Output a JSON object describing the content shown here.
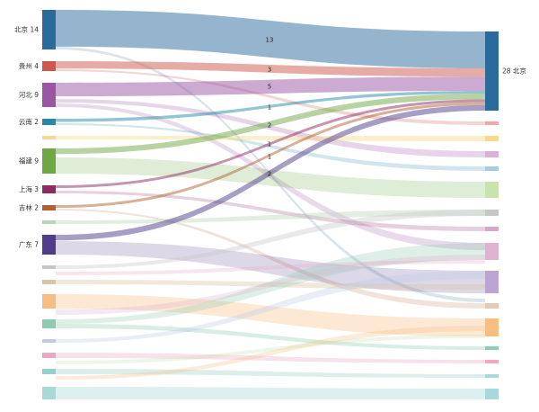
{
  "chart_data": {
    "type": "sankey",
    "target": {
      "name": "北京",
      "value": 28,
      "label": "28 北京",
      "color": "#2a6b9c"
    },
    "sources": [
      {
        "name": "北京",
        "value": 14,
        "label": "北京 14",
        "color": "#2a6b9c"
      },
      {
        "name": "贵州",
        "value": 4,
        "label": "贵州 4",
        "color": "#d0574c"
      },
      {
        "name": "河北",
        "value": 9,
        "label": "河北 9",
        "color": "#9b55a3"
      },
      {
        "name": "云南",
        "value": 2,
        "label": "云南 2",
        "color": "#2889a7"
      },
      {
        "name": "福建",
        "value": 9,
        "label": "福建 9",
        "color": "#6ea843"
      },
      {
        "name": "上海",
        "value": 3,
        "label": "上海 3",
        "color": "#8e2a62"
      },
      {
        "name": "吉林",
        "value": 2,
        "label": "吉林 2",
        "color": "#b06130"
      },
      {
        "name": "广东",
        "value": 7,
        "label": "广东 7",
        "color": "#4f3d8c"
      }
    ],
    "flows_to_target": [
      {
        "from": "北京",
        "value": 13
      },
      {
        "from": "贵州",
        "value": 3
      },
      {
        "from": "河北",
        "value": 5
      },
      {
        "from": "云南",
        "value": 1
      },
      {
        "from": "福建",
        "value": 2
      },
      {
        "from": "上海",
        "value": 1
      },
      {
        "from": "吉林",
        "value": 1
      },
      {
        "from": "广东",
        "value": 2
      }
    ]
  }
}
